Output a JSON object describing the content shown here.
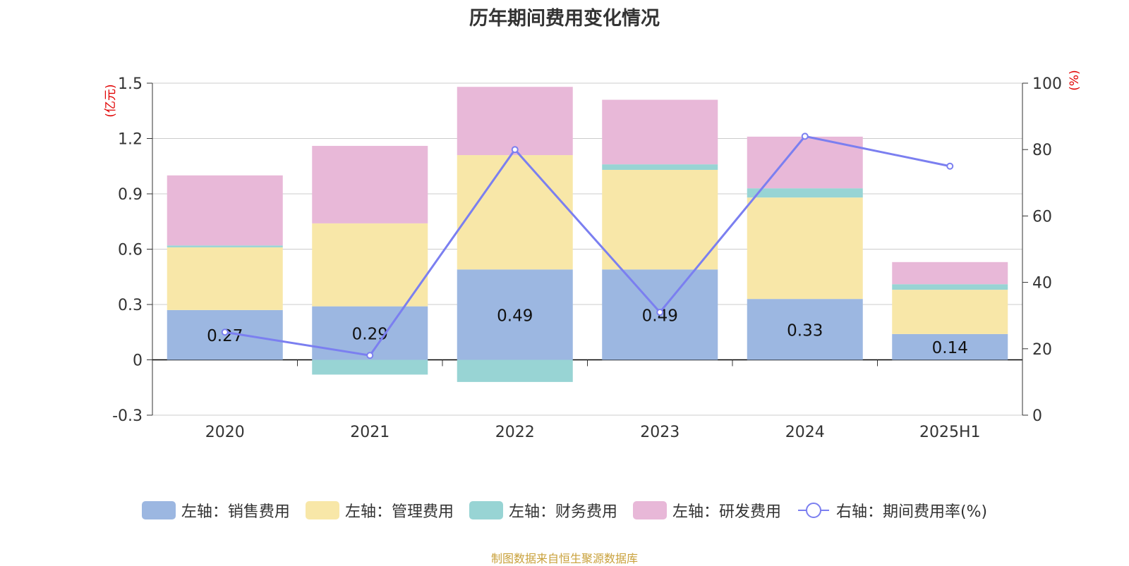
{
  "chart_data": {
    "type": "bar",
    "title": "历年期间费用变化情况",
    "categories": [
      "2020",
      "2021",
      "2022",
      "2023",
      "2024",
      "2025H1"
    ],
    "left_axis": {
      "unit_label": "(亿元)",
      "ylim": [
        -0.3,
        1.5
      ],
      "ticks": [
        "-0.3",
        "0",
        "0.3",
        "0.6",
        "0.9",
        "1.2",
        "1.5"
      ]
    },
    "right_axis": {
      "unit_label": "(%)",
      "ylim": [
        0,
        100
      ],
      "ticks": [
        "0",
        "20",
        "40",
        "60",
        "80",
        "100"
      ]
    },
    "series": [
      {
        "name": "左轴：销售费用",
        "type": "bar",
        "stacked": true,
        "color": "#9cb7e1",
        "values": [
          0.27,
          0.29,
          0.49,
          0.49,
          0.33,
          0.14
        ],
        "data_labels": [
          "0.27",
          "0.29",
          "0.49",
          "0.49",
          "0.33",
          "0.14"
        ]
      },
      {
        "name": "左轴：管理费用",
        "type": "bar",
        "stacked": true,
        "color": "#f8e7a8",
        "values": [
          0.34,
          0.45,
          0.62,
          0.54,
          0.55,
          0.24
        ]
      },
      {
        "name": "左轴：财务费用",
        "type": "bar",
        "stacked": true,
        "color": "#98d4d4",
        "values": [
          0.01,
          -0.08,
          -0.12,
          0.03,
          0.05,
          0.03
        ]
      },
      {
        "name": "左轴：研发费用",
        "type": "bar",
        "stacked": true,
        "color": "#e8b8d8",
        "values": [
          0.38,
          0.42,
          0.37,
          0.35,
          0.28,
          0.12
        ]
      },
      {
        "name": "右轴：期间费用率(%)",
        "type": "line",
        "axis": "right",
        "color": "#7b7ff0",
        "values": [
          25,
          18,
          80,
          31,
          84,
          75
        ]
      }
    ],
    "grid": true,
    "legend_position": "bottom"
  },
  "source_note": "制图数据来自恒生聚源数据库"
}
